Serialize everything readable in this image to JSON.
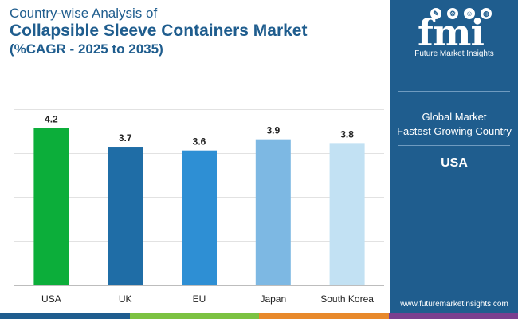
{
  "header": {
    "title_line1": "Country-wise Analysis of",
    "title_line2": "Collapsible Sleeve Containers Market",
    "title_line3": "(%CAGR - 2025 to 2035)"
  },
  "chart_data": {
    "type": "bar",
    "categories": [
      "USA",
      "UK",
      "EU",
      "Japan",
      "South Korea"
    ],
    "values": [
      4.2,
      3.7,
      3.6,
      3.9,
      3.8
    ],
    "value_labels": [
      "4.2",
      "3.7",
      "3.6",
      "3.9",
      "3.8"
    ],
    "colors": [
      "#0cae3a",
      "#1f6da6",
      "#2e8fd4",
      "#7db8e3",
      "#c2e1f3"
    ],
    "title": "Collapsible Sleeve Containers Market",
    "xlabel": "",
    "ylabel": "",
    "ylim": [
      0,
      4.5
    ],
    "grid": true,
    "legend": "none"
  },
  "panel": {
    "logo_letters": "fmi",
    "logo_subtitle": "Future Market Insights",
    "logo_icon_names": [
      "tool-icon",
      "gear-icon",
      "person-icon",
      "globe-icon"
    ],
    "global_label": "Global Market",
    "fastest_label": "Fastest Growing Country",
    "country_value": "USA",
    "website": "www.futuremarketinsights.com"
  },
  "colors": {
    "panel_bg": "#1f5d8e",
    "title": "#1f5d8e",
    "strip": [
      "#1f5d8e",
      "#7cc242",
      "#e8892b",
      "#7a3f8f"
    ]
  }
}
